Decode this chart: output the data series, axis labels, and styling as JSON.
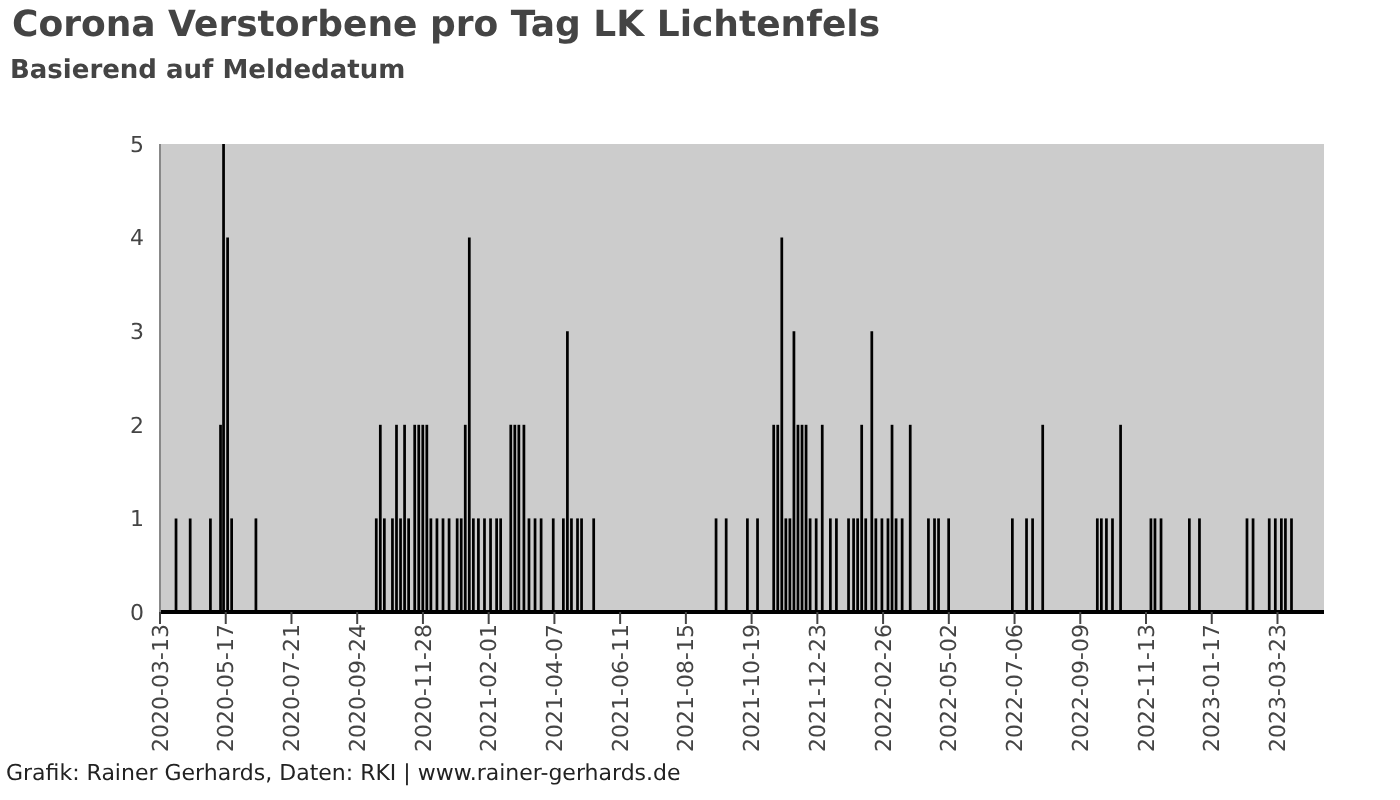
{
  "chart_data": {
    "type": "bar",
    "title": "Corona Verstorbene pro Tag LK Lichtenfels",
    "subtitle": "Basierend auf Meldedatum",
    "annotations": [
      "Grafik: Rainer Gerhards, Daten: RKI | www.rainer-gerhards.de"
    ],
    "x": [
      "2020-03-29",
      "2020-04-12",
      "2020-05-02",
      "2020-05-12",
      "2020-05-15",
      "2020-05-19",
      "2020-05-23",
      "2020-06-16",
      "2020-10-13",
      "2020-10-17",
      "2020-10-21",
      "2020-10-29",
      "2020-11-02",
      "2020-11-06",
      "2020-11-10",
      "2020-11-14",
      "2020-11-20",
      "2020-11-24",
      "2020-11-28",
      "2020-12-02",
      "2020-12-06",
      "2020-12-12",
      "2020-12-18",
      "2020-12-24",
      "2021-01-01",
      "2021-01-05",
      "2021-01-09",
      "2021-01-13",
      "2021-01-17",
      "2021-01-22",
      "2021-01-28",
      "2021-02-03",
      "2021-02-09",
      "2021-02-13",
      "2021-02-23",
      "2021-02-27",
      "2021-03-03",
      "2021-03-08",
      "2021-03-13",
      "2021-03-19",
      "2021-03-25",
      "2021-04-06",
      "2021-04-16",
      "2021-04-20",
      "2021-04-24",
      "2021-04-30",
      "2021-05-04",
      "2021-05-16",
      "2021-09-14",
      "2021-09-24",
      "2021-10-15",
      "2021-10-25",
      "2021-11-10",
      "2021-11-14",
      "2021-11-18",
      "2021-11-22",
      "2021-11-26",
      "2021-11-30",
      "2021-12-04",
      "2021-12-08",
      "2021-12-12",
      "2021-12-16",
      "2021-12-22",
      "2021-12-28",
      "2022-01-05",
      "2022-01-11",
      "2022-01-23",
      "2022-01-28",
      "2022-02-01",
      "2022-02-05",
      "2022-02-09",
      "2022-02-15",
      "2022-02-19",
      "2022-02-25",
      "2022-03-03",
      "2022-03-07",
      "2022-03-11",
      "2022-03-17",
      "2022-03-25",
      "2022-04-12",
      "2022-04-18",
      "2022-04-22",
      "2022-05-02",
      "2022-07-04",
      "2022-07-18",
      "2022-07-24",
      "2022-08-03",
      "2022-09-26",
      "2022-09-30",
      "2022-10-05",
      "2022-10-11",
      "2022-10-19",
      "2022-11-18",
      "2022-11-22",
      "2022-11-28",
      "2022-12-26",
      "2023-01-05",
      "2023-02-21",
      "2023-02-27",
      "2023-03-15",
      "2023-03-21",
      "2023-03-27",
      "2023-03-31",
      "2023-04-06"
    ],
    "values": [
      1,
      1,
      1,
      2,
      5,
      4,
      1,
      1,
      1,
      2,
      1,
      1,
      2,
      1,
      2,
      1,
      2,
      2,
      2,
      2,
      1,
      1,
      1,
      1,
      1,
      1,
      2,
      4,
      1,
      1,
      1,
      1,
      1,
      1,
      2,
      2,
      2,
      2,
      1,
      1,
      1,
      1,
      1,
      3,
      1,
      1,
      1,
      1,
      1,
      1,
      1,
      1,
      2,
      2,
      4,
      1,
      1,
      3,
      2,
      2,
      2,
      1,
      1,
      2,
      1,
      1,
      1,
      1,
      1,
      2,
      1,
      3,
      1,
      1,
      1,
      2,
      1,
      1,
      2,
      1,
      1,
      1,
      1,
      1,
      1,
      1,
      2,
      1,
      1,
      1,
      1,
      2,
      1,
      1,
      1,
      1,
      1,
      1,
      1,
      1,
      1,
      1,
      1,
      1
    ],
    "color": "#000000",
    "xlim": [
      "2020-03-13",
      "2023-05-08"
    ],
    "xticks": [
      "2020-03-13",
      "2020-05-17",
      "2020-07-21",
      "2020-09-24",
      "2020-11-28",
      "2021-02-01",
      "2021-04-07",
      "2021-06-11",
      "2021-08-15",
      "2021-10-19",
      "2021-12-23",
      "2022-02-26",
      "2022-05-02",
      "2022-07-06",
      "2022-09-09",
      "2022-11-13",
      "2023-01-17",
      "2023-03-23"
    ],
    "ylim": [
      0,
      5
    ],
    "yticks": [
      0,
      1,
      2,
      3,
      4,
      5
    ],
    "grid": false,
    "legend": false
  }
}
